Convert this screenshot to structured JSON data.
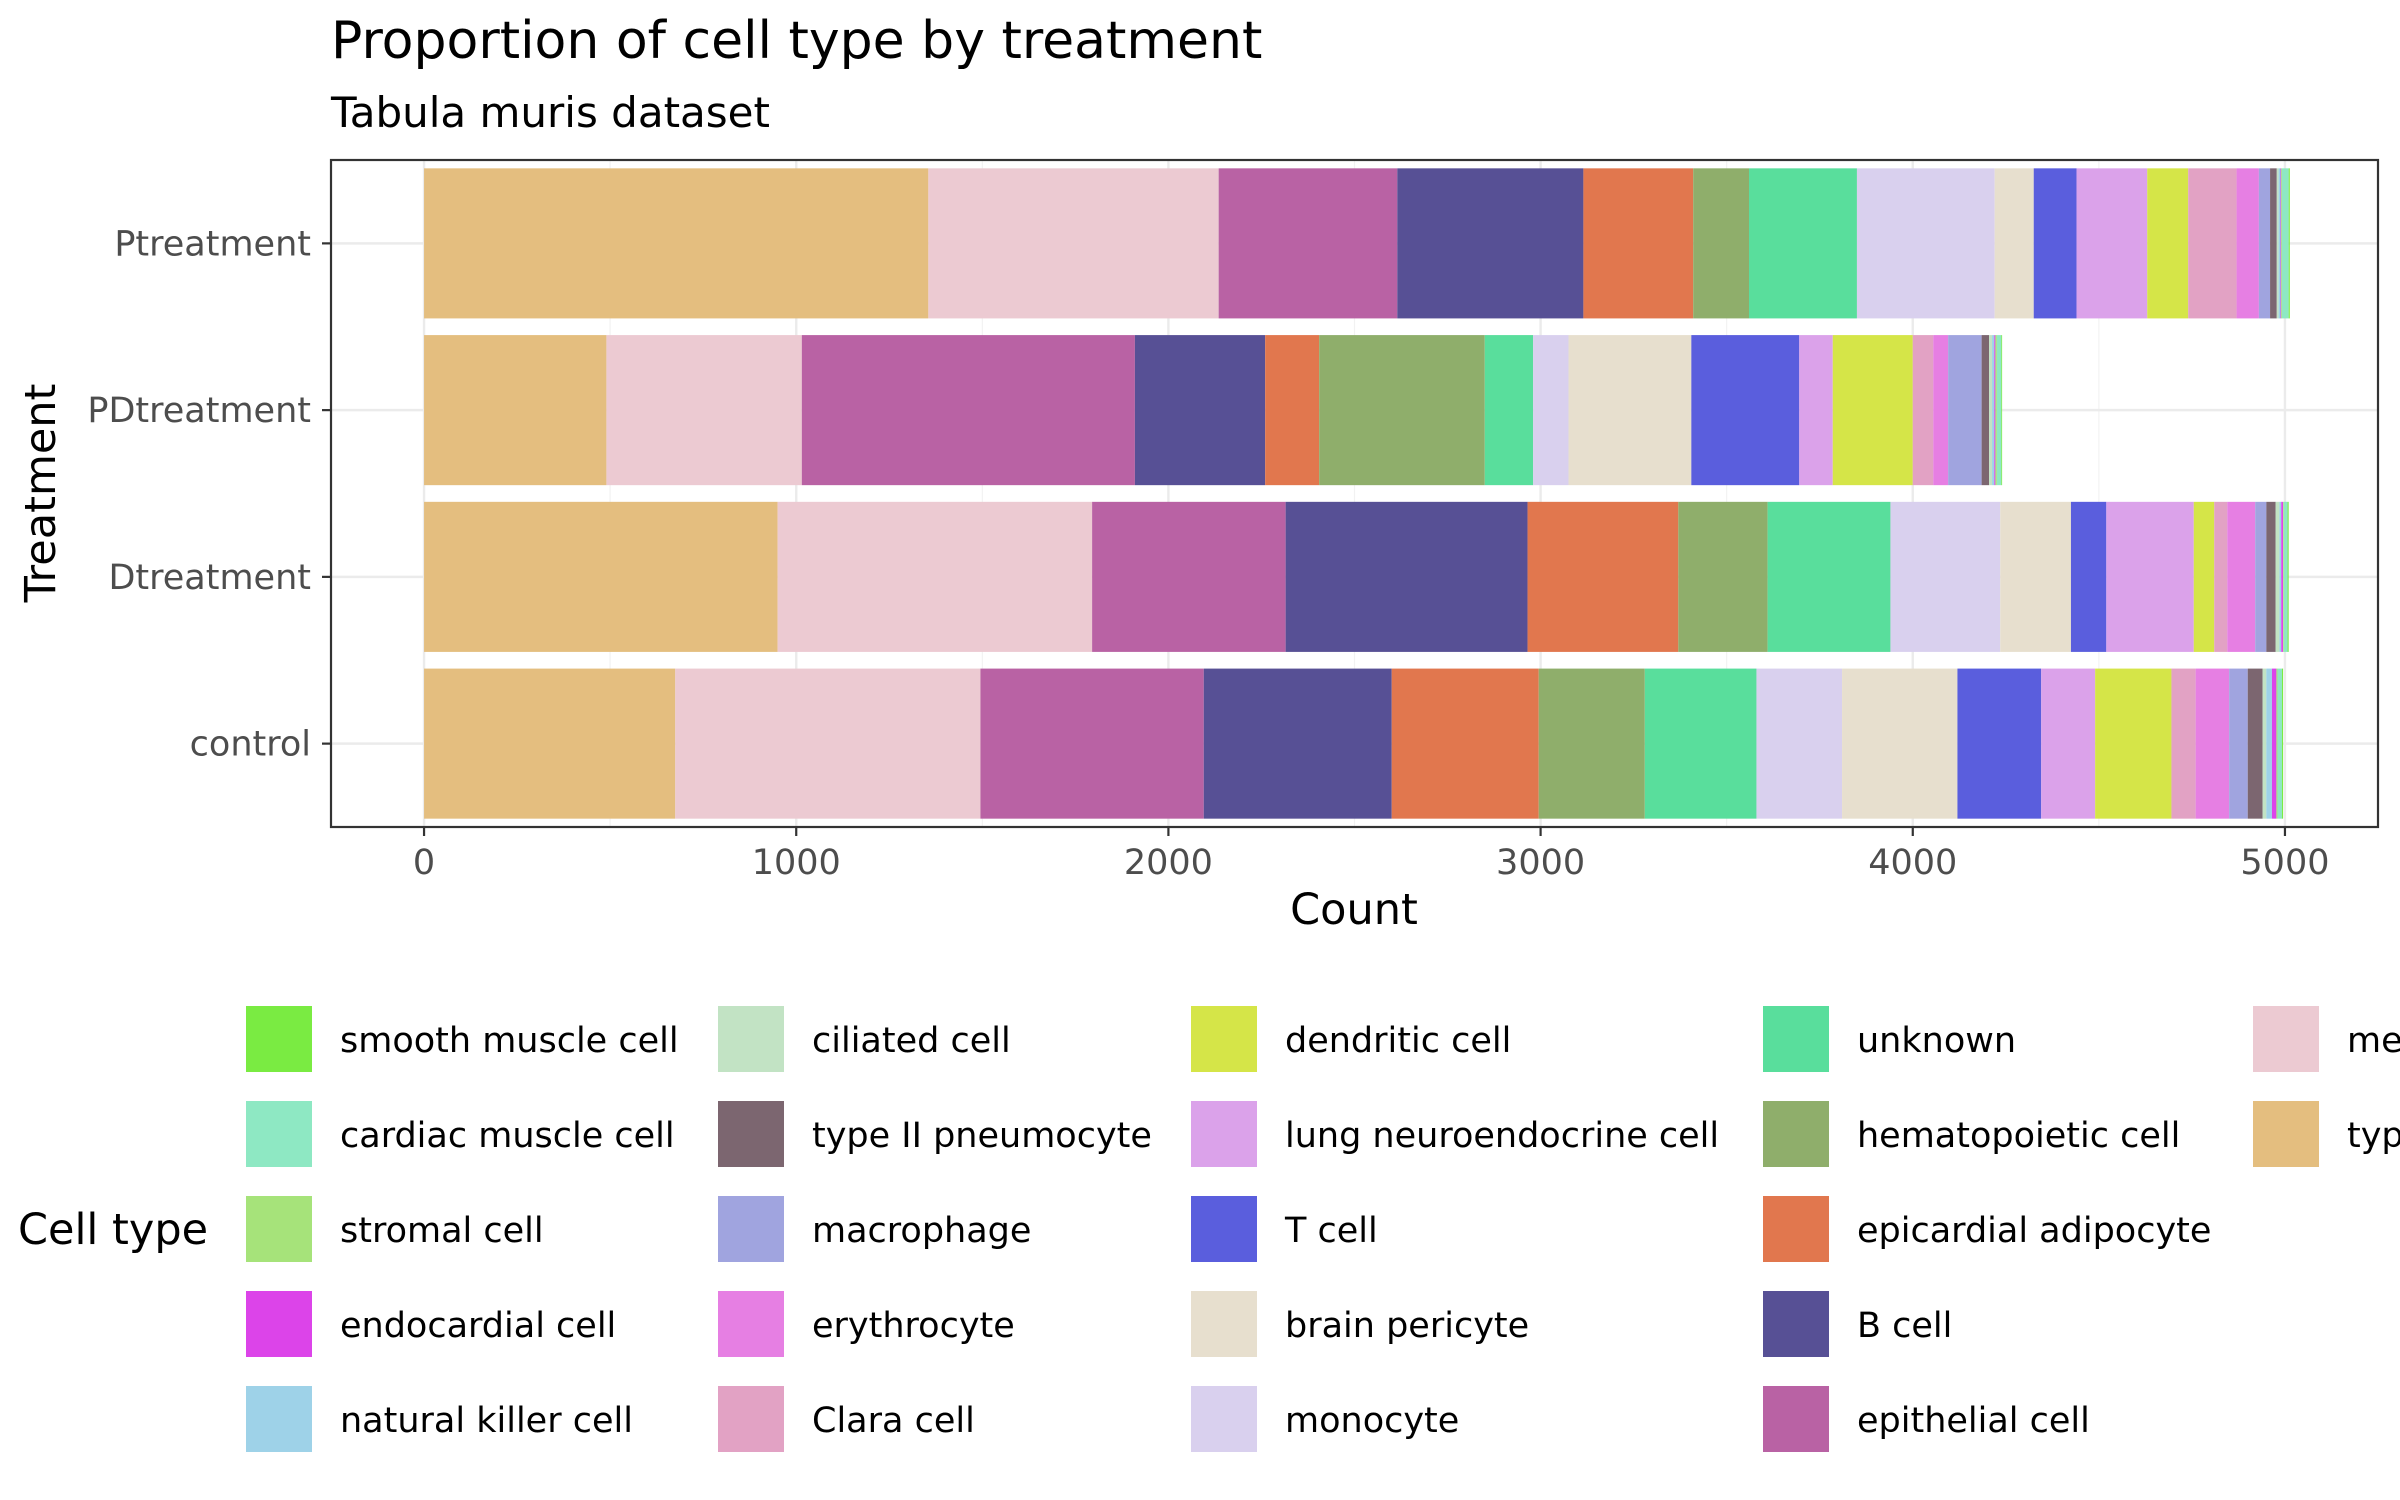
{
  "chart_data": {
    "type": "bar",
    "orientation": "horizontal",
    "stacked": true,
    "title": "Proportion of cell type by treatment",
    "subtitle": "Tabula muris dataset",
    "xlabel": "Count",
    "ylabel": "Treatment",
    "xlim": [
      -250,
      5250
    ],
    "xticks": [
      0,
      1000,
      2000,
      3000,
      4000,
      5000
    ],
    "grid": true,
    "legend": {
      "title": "Cell type",
      "position": "bottom"
    },
    "categories": [
      "control",
      "Dtreatment",
      "PDtreatment",
      "Ptreatment"
    ],
    "series": [
      {
        "name": "type B pancreatic cell",
        "color": "#E4BE7F",
        "values": [
          675,
          950,
          490,
          1355
        ]
      },
      {
        "name": "mesenchymal cell",
        "color": "#ECCAD2",
        "values": [
          820,
          845,
          525,
          780
        ]
      },
      {
        "name": "epithelial cell",
        "color": "#B962A4",
        "values": [
          600,
          520,
          895,
          480
        ]
      },
      {
        "name": "B cell",
        "color": "#575095",
        "values": [
          505,
          650,
          350,
          500
        ]
      },
      {
        "name": "epicardial adipocyte",
        "color": "#E1774E",
        "values": [
          395,
          405,
          145,
          295
        ]
      },
      {
        "name": "hematopoietic cell",
        "color": "#8FAE6B",
        "values": [
          285,
          240,
          445,
          150
        ]
      },
      {
        "name": "unknown",
        "color": "#59DE9C",
        "values": [
          300,
          330,
          130,
          290
        ]
      },
      {
        "name": "monocyte",
        "color": "#D9D0EE",
        "values": [
          230,
          295,
          95,
          370
        ]
      },
      {
        "name": "brain pericyte",
        "color": "#E7DFCE",
        "values": [
          310,
          190,
          330,
          105
        ]
      },
      {
        "name": "T cell",
        "color": "#5A5EDD",
        "values": [
          225,
          95,
          290,
          115
        ]
      },
      {
        "name": "lung neuroendocrine cell",
        "color": "#DBA2EA",
        "values": [
          145,
          235,
          90,
          190
        ]
      },
      {
        "name": "dendritic cell",
        "color": "#D5E548",
        "values": [
          205,
          55,
          215,
          110
        ]
      },
      {
        "name": "Clara cell",
        "color": "#E2A2C4",
        "values": [
          65,
          35,
          55,
          130
        ]
      },
      {
        "name": "erythrocyte",
        "color": "#E67FE3",
        "values": [
          90,
          75,
          40,
          60
        ]
      },
      {
        "name": "macrophage",
        "color": "#A0A4DF",
        "values": [
          50,
          30,
          90,
          30
        ]
      },
      {
        "name": "type II pneumocyte",
        "color": "#7C6670",
        "values": [
          40,
          25,
          20,
          18
        ]
      },
      {
        "name": "ciliated cell",
        "color": "#C2E3C4",
        "values": [
          10,
          10,
          8,
          5
        ]
      },
      {
        "name": "natural killer cell",
        "color": "#9ED2E8",
        "values": [
          15,
          5,
          6,
          5
        ]
      },
      {
        "name": "endocardial cell",
        "color": "#DC44E9",
        "values": [
          12,
          5,
          3,
          2
        ]
      },
      {
        "name": "stromal cell",
        "color": "#A6E37A",
        "values": [
          3,
          2,
          4,
          2
        ]
      },
      {
        "name": "cardiac muscle cell",
        "color": "#8EE8C3",
        "values": [
          12,
          10,
          12,
          18
        ]
      },
      {
        "name": "smooth muscle cell",
        "color": "#7AEB42",
        "values": [
          3,
          3,
          2,
          3
        ]
      }
    ],
    "legend_order": [
      "smooth muscle cell",
      "cardiac muscle cell",
      "stromal cell",
      "endocardial cell",
      "natural killer cell",
      "ciliated cell",
      "type II pneumocyte",
      "macrophage",
      "erythrocyte",
      "Clara cell",
      "dendritic cell",
      "lung neuroendocrine cell",
      "T cell",
      "brain pericyte",
      "monocyte",
      "unknown",
      "hematopoietic cell",
      "epicardial adipocyte",
      "B cell",
      "epithelial cell",
      "mesenchymal cell",
      "type B pancreatic cell"
    ]
  }
}
